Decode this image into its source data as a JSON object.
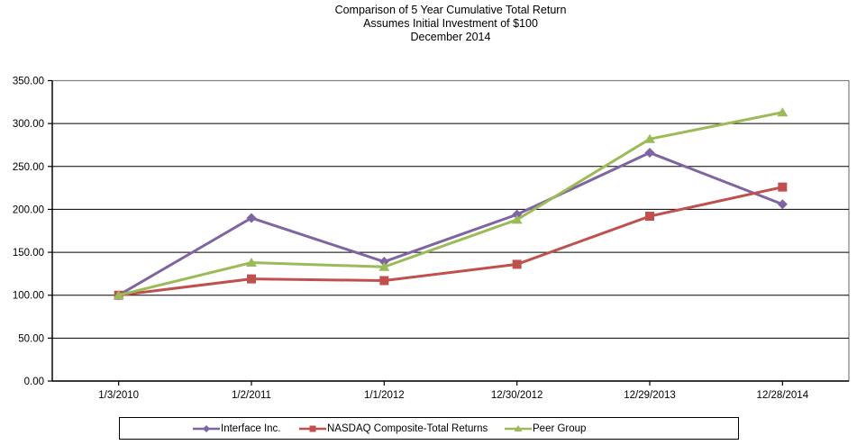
{
  "title": {
    "line1": "Comparison of 5 Year Cumulative Total Return",
    "line2": "Assumes Initial Investment of $100",
    "line3": "December 2014"
  },
  "chart_data": {
    "type": "line",
    "categories": [
      "1/3/2010",
      "1/2/2011",
      "1/1/2012",
      "12/30/2012",
      "12/29/2013",
      "12/28/2014"
    ],
    "series": [
      {
        "name": "Interface Inc.",
        "marker": "diamond",
        "color": "#8064A2",
        "values": [
          100,
          190,
          139,
          194,
          266,
          206
        ]
      },
      {
        "name": "NASDAQ Composite-Total Returns",
        "marker": "square",
        "color": "#C0504D",
        "values": [
          100,
          119,
          117,
          136,
          192,
          226
        ]
      },
      {
        "name": "Peer Group",
        "marker": "triangle",
        "color": "#9BBB59",
        "values": [
          100,
          138,
          133,
          188,
          282,
          313
        ]
      }
    ],
    "ylim": [
      0,
      350
    ],
    "ytick_step": 50,
    "ytick_labels": [
      "0.00",
      "50.00",
      "100.00",
      "150.00",
      "200.00",
      "250.00",
      "300.00",
      "350.00"
    ],
    "xlabel": "",
    "ylabel": "",
    "grid": true,
    "legend_position": "bottom",
    "colors": {
      "gridline": "#000000",
      "axis": "#000000",
      "plot_border": "#808080",
      "text": "#000000",
      "background": "#ffffff"
    }
  }
}
